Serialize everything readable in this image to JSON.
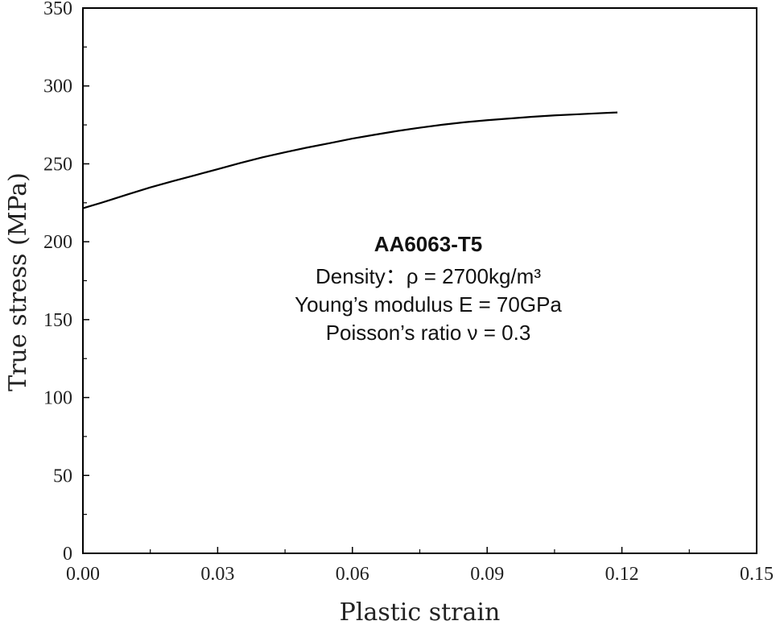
{
  "chart_data": {
    "type": "line",
    "title": "",
    "xlabel": "Plastic strain",
    "ylabel": "True stress (MPa)",
    "xlim": [
      0,
      0.15
    ],
    "ylim": [
      0,
      350
    ],
    "x_major_ticks": [
      0.0,
      0.03,
      0.06,
      0.09,
      0.12,
      0.15
    ],
    "x_tick_labels": [
      "0.00",
      "0.03",
      "0.06",
      "0.09",
      "0.12",
      "0.15"
    ],
    "x_minor_ticks": [
      0.015,
      0.045,
      0.075,
      0.105,
      0.135
    ],
    "y_major_ticks": [
      0,
      50,
      100,
      150,
      200,
      250,
      300,
      350
    ],
    "y_tick_labels": [
      "0",
      "50",
      "100",
      "150",
      "200",
      "250",
      "300",
      "350"
    ],
    "y_minor_ticks": [
      25,
      75,
      125,
      175,
      225,
      275,
      325
    ],
    "grid": false,
    "series": [
      {
        "name": "AA6063-T5",
        "color": "#000000",
        "x": [
          0.0,
          0.005,
          0.01,
          0.015,
          0.02,
          0.025,
          0.03,
          0.035,
          0.04,
          0.045,
          0.05,
          0.055,
          0.06,
          0.065,
          0.07,
          0.075,
          0.08,
          0.085,
          0.09,
          0.095,
          0.1,
          0.105,
          0.11,
          0.115,
          0.119
        ],
        "y": [
          221.5,
          225.8,
          230.4,
          234.9,
          238.9,
          242.7,
          246.6,
          250.5,
          254.2,
          257.4,
          260.5,
          263.3,
          266.2,
          268.7,
          271.1,
          273.2,
          275.1,
          276.7,
          278.0,
          279.1,
          280.2,
          281.1,
          281.8,
          282.5,
          283.0
        ]
      }
    ],
    "annotations": {
      "title": "AA6063-T5",
      "lines": [
        "Density：ρ = 2700kg/m³",
        "Young’s modulus E = 70GPa",
        "Poisson’s ratio ν = 0.3"
      ]
    }
  }
}
